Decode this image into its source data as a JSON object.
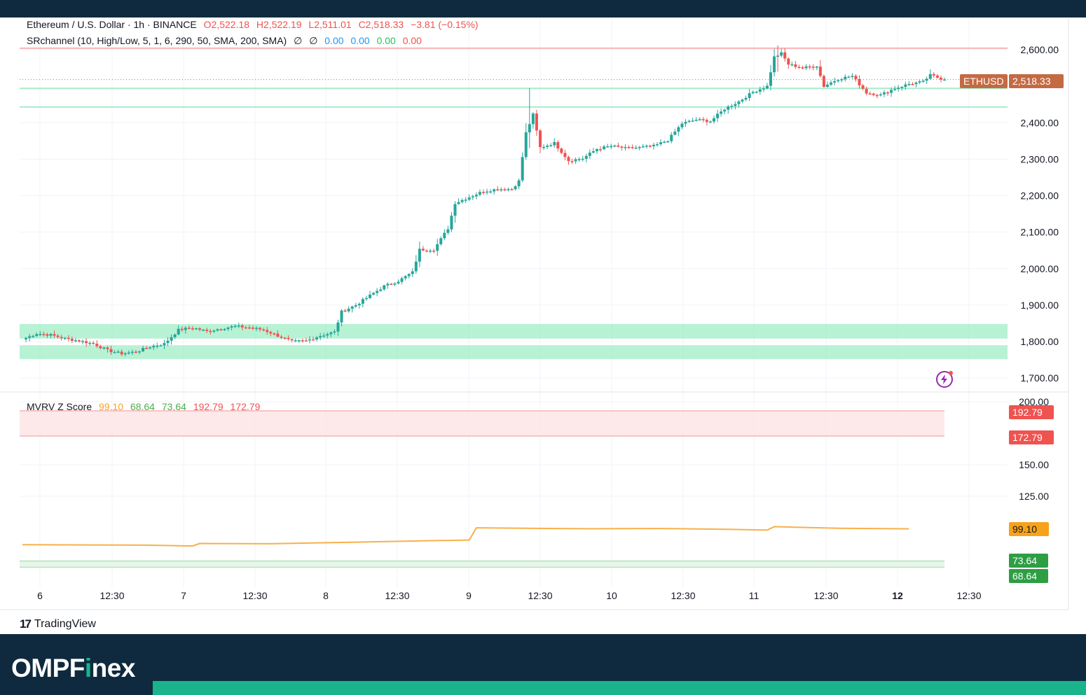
{
  "header": {
    "symbol_line": {
      "name": "Ethereum / U.S. Dollar · 1h · BINANCE",
      "open": "O2,522.18",
      "high": "H2,522.19",
      "low": "L2,511.01",
      "close": "C2,518.33",
      "change": "−3.81 (−0.15%)"
    },
    "indicator_line": {
      "name": "SRchannel (10, High/Low, 5, 1, 6, 290, 50, SMA, 200, SMA)",
      "nan1": "∅",
      "nan2": "∅",
      "v1": "0.00",
      "v2": "0.00",
      "v3": "0.00",
      "v4": "0.00"
    },
    "mvrv_line": {
      "name": "MVRV Z Score",
      "v1": "99.10",
      "v2": "68.64",
      "v3": "73.64",
      "v4": "192.79",
      "v5": "172.79"
    }
  },
  "price_tags": {
    "symbol": "ETHUSD",
    "last": "2,518.33",
    "mvrv_upper": "192.79",
    "mvrv_lower": "172.79",
    "mvrv_value": "99.10",
    "green_upper": "73.64",
    "green_lower": "68.64"
  },
  "footer": {
    "platform": "TradingView",
    "brand_main": "OMPF",
    "brand_accent": "i",
    "brand_tail": "nex"
  },
  "colors": {
    "up": "#26a69a",
    "down": "#ef5350",
    "sr_zone": "#7ee8b0",
    "resistance": "#f8b4b4",
    "mvrv_line": "#f7b04a",
    "bar_dark": "#0f2a3e",
    "brand_accent": "#19b48c"
  },
  "chart_data": [
    {
      "type": "candlestick",
      "title": "Ethereum / U.S. Dollar · 1h · BINANCE",
      "x_ticks": [
        "6",
        "12:30",
        "7",
        "12:30",
        "8",
        "12:30",
        "9",
        "12:30",
        "10",
        "12:30",
        "11",
        "12:30",
        "12",
        "12:30"
      ],
      "y_ticks": [
        "1,700.00",
        "1,800.00",
        "1,900.00",
        "2,000.00",
        "2,100.00",
        "2,200.00",
        "2,300.00",
        "2,400.00",
        "2,600.00"
      ],
      "ylim": [
        1680,
        2680
      ],
      "last_price": 2518.33,
      "sr_zones": [
        [
          1808,
          1848
        ],
        [
          1752,
          1790
        ]
      ],
      "resistance_line": 2604,
      "support_lines": [
        2494,
        2443
      ],
      "anchor_closes": [
        [
          0,
          1806
        ],
        [
          4,
          1822
        ],
        [
          8,
          1818
        ],
        [
          12,
          1808
        ],
        [
          16,
          1802
        ],
        [
          20,
          1794
        ],
        [
          24,
          1776
        ],
        [
          28,
          1767
        ],
        [
          32,
          1772
        ],
        [
          36,
          1786
        ],
        [
          40,
          1794
        ],
        [
          44,
          1832
        ],
        [
          48,
          1838
        ],
        [
          52,
          1828
        ],
        [
          56,
          1836
        ],
        [
          60,
          1842
        ],
        [
          64,
          1838
        ],
        [
          68,
          1832
        ],
        [
          72,
          1816
        ],
        [
          76,
          1800
        ],
        [
          80,
          1802
        ],
        [
          84,
          1816
        ],
        [
          88,
          1826
        ],
        [
          90,
          1882
        ],
        [
          94,
          1900
        ],
        [
          98,
          1926
        ],
        [
          102,
          1952
        ],
        [
          106,
          1966
        ],
        [
          110,
          1990
        ],
        [
          112,
          2052
        ],
        [
          116,
          2052
        ],
        [
          120,
          2110
        ],
        [
          122,
          2180
        ],
        [
          126,
          2196
        ],
        [
          130,
          2212
        ],
        [
          134,
          2218
        ],
        [
          138,
          2218
        ],
        [
          140,
          2240
        ],
        [
          142,
          2372
        ],
        [
          144,
          2422
        ],
        [
          146,
          2332
        ],
        [
          150,
          2344
        ],
        [
          154,
          2296
        ],
        [
          158,
          2302
        ],
        [
          162,
          2328
        ],
        [
          166,
          2336
        ],
        [
          170,
          2330
        ],
        [
          174,
          2332
        ],
        [
          178,
          2336
        ],
        [
          182,
          2352
        ],
        [
          186,
          2398
        ],
        [
          190,
          2408
        ],
        [
          194,
          2404
        ],
        [
          198,
          2438
        ],
        [
          202,
          2458
        ],
        [
          206,
          2484
        ],
        [
          210,
          2500
        ],
        [
          212,
          2580
        ],
        [
          214,
          2590
        ],
        [
          216,
          2560
        ],
        [
          220,
          2550
        ],
        [
          224,
          2556
        ],
        [
          226,
          2500
        ],
        [
          230,
          2520
        ],
        [
          234,
          2528
        ],
        [
          238,
          2482
        ],
        [
          242,
          2476
        ],
        [
          246,
          2494
        ],
        [
          250,
          2506
        ],
        [
          254,
          2512
        ],
        [
          256,
          2530
        ],
        [
          260,
          2518
        ]
      ]
    },
    {
      "type": "line",
      "title": "MVRV Z Score",
      "x_ticks": [
        "6",
        "12:30",
        "7",
        "12:30",
        "8",
        "12:30",
        "9",
        "12:30",
        "10",
        "12:30",
        "11",
        "12:30",
        "12",
        "12:30"
      ],
      "y_ticks": [
        "125.00",
        "150.00",
        "200.00"
      ],
      "ylim": [
        56,
        208
      ],
      "bands": [
        [
          172.79,
          192.79
        ],
        [
          68.64,
          73.64
        ]
      ],
      "series": [
        {
          "points": [
            [
              0,
              86.5
            ],
            [
              35,
              86.2
            ],
            [
              48,
              85.5
            ],
            [
              50,
              87.5
            ],
            [
              70,
              87.3
            ],
            [
              90,
              88.3
            ],
            [
              115,
              89.7
            ],
            [
              126,
              90.2
            ],
            [
              128,
              99.9
            ],
            [
              160,
              99.2
            ],
            [
              180,
              99.4
            ],
            [
              200,
              98.7
            ],
            [
              210,
              98.1
            ],
            [
              212,
              100.8
            ],
            [
              230,
              99.6
            ],
            [
              250,
              99.1
            ]
          ]
        }
      ]
    }
  ]
}
